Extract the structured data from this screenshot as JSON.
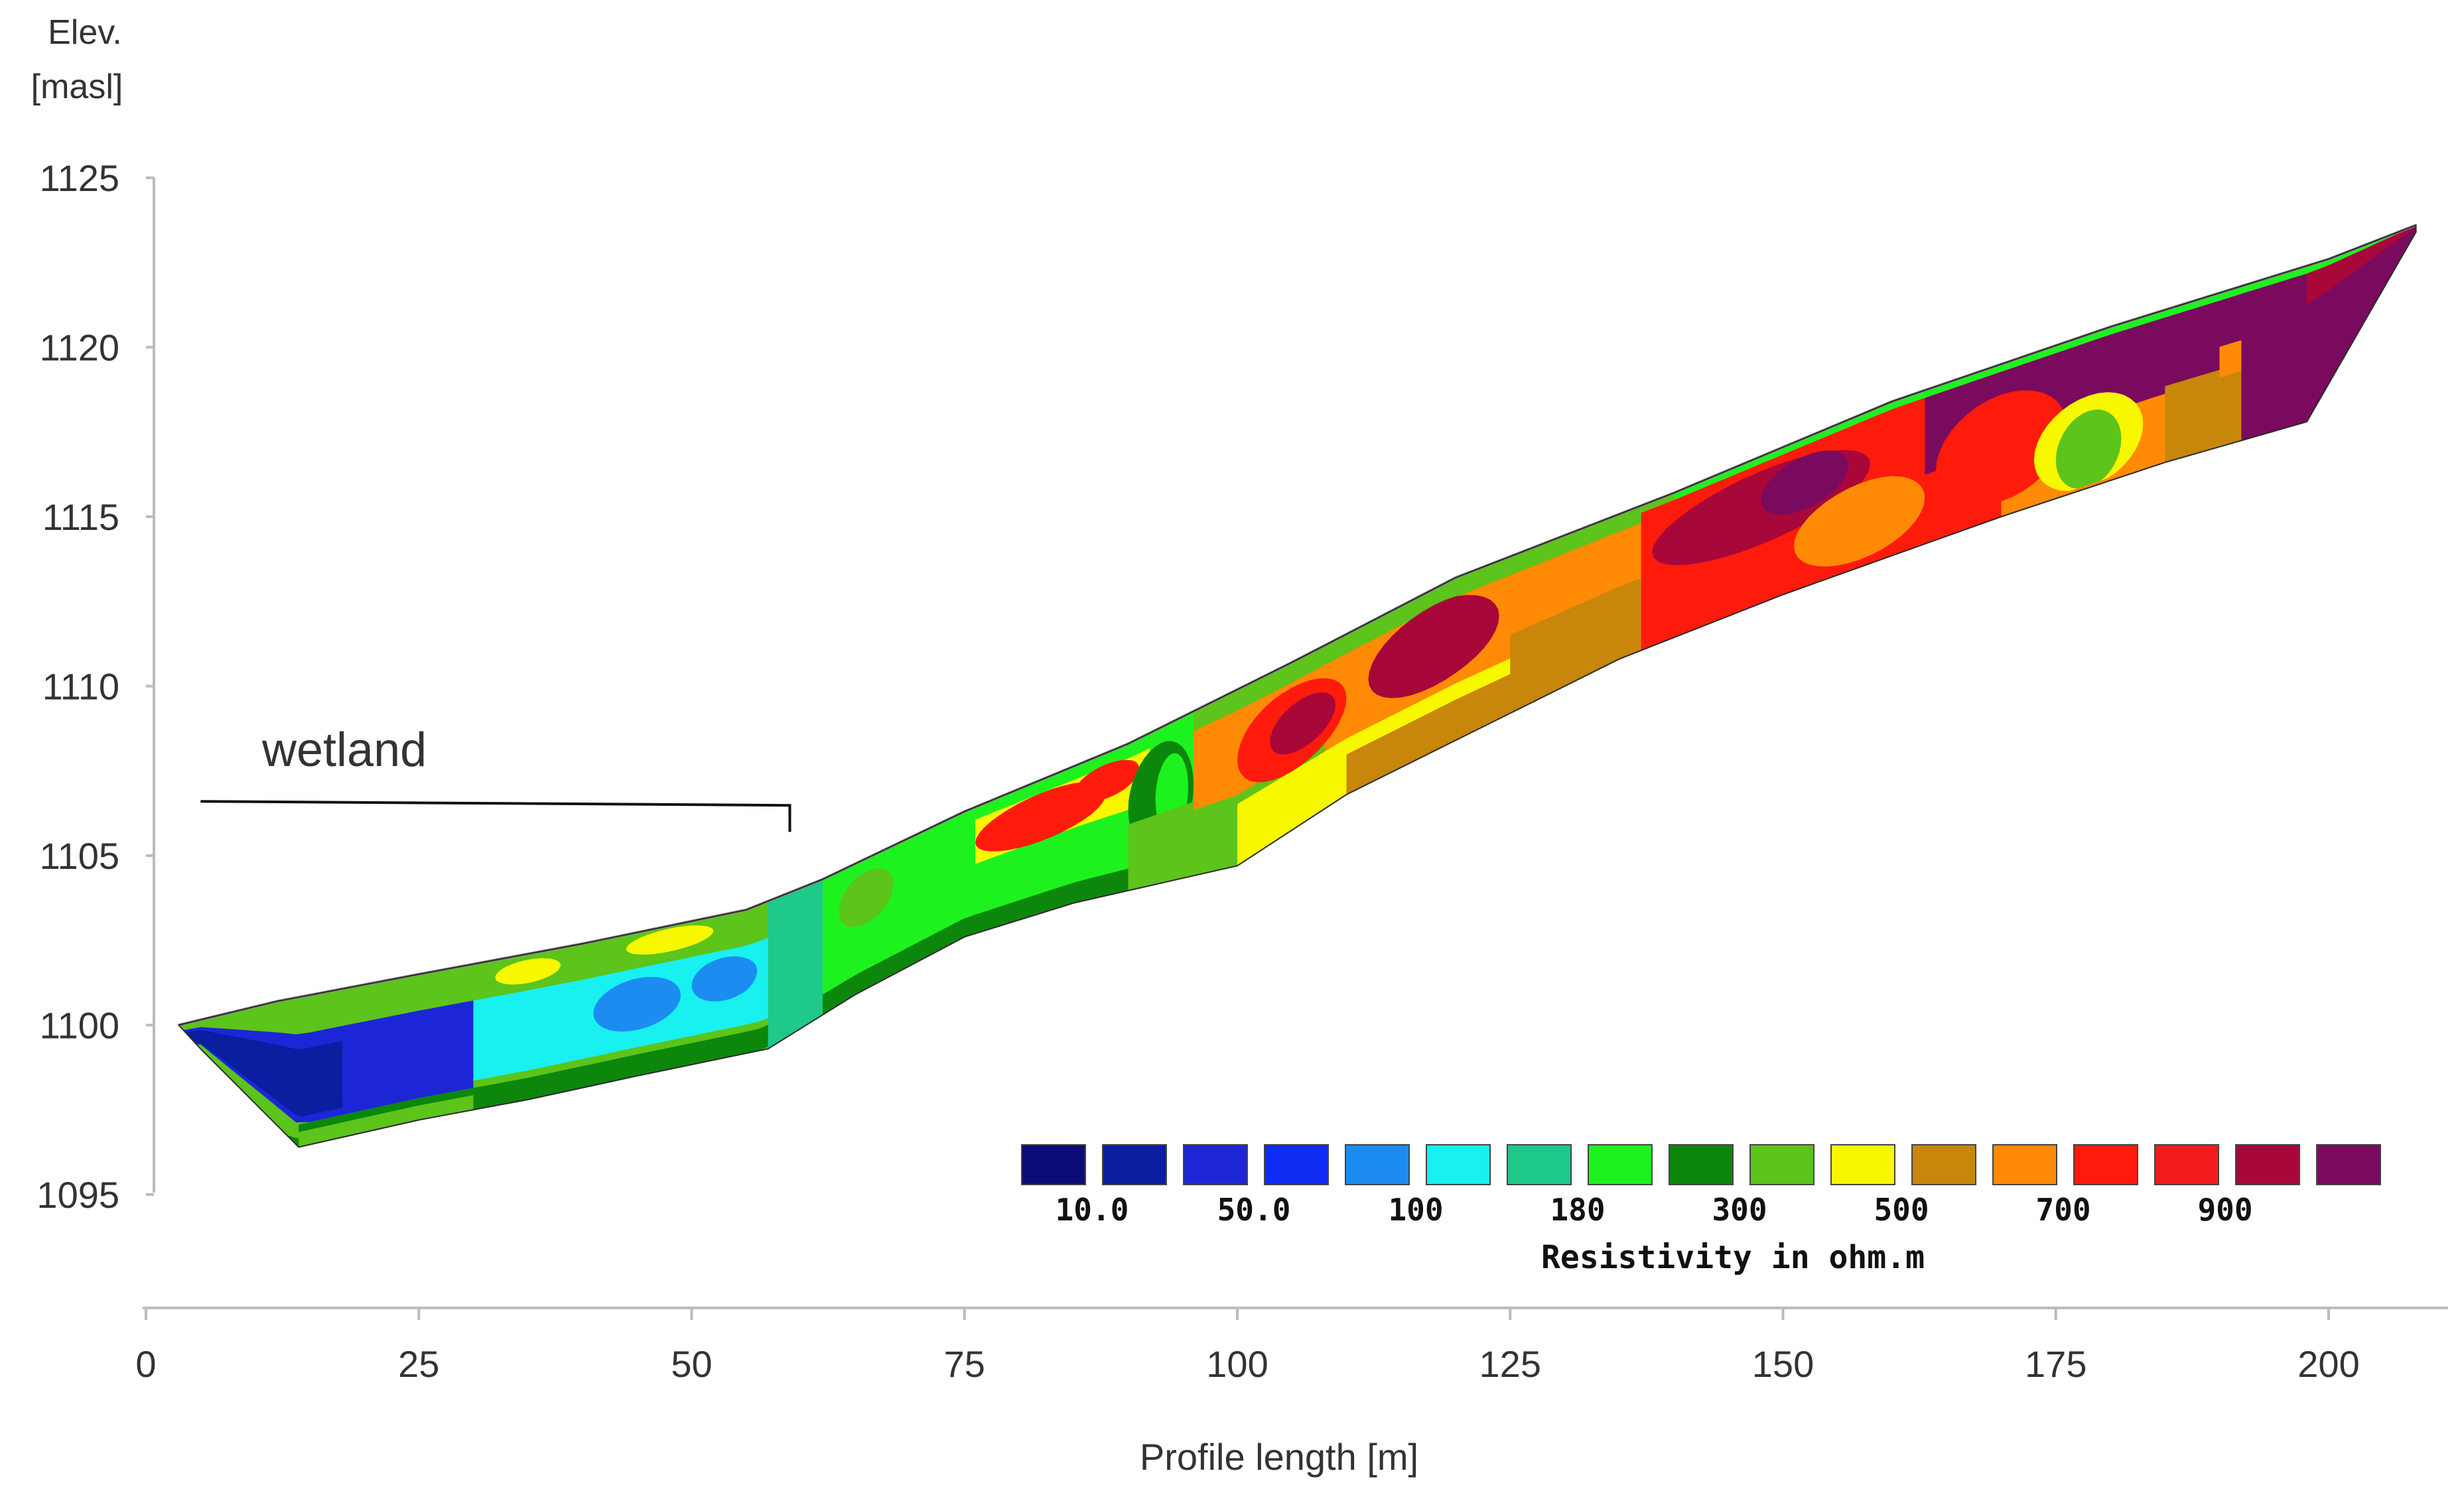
{
  "chart_data": {
    "type": "heatmap",
    "title": "",
    "xlabel": "Profile length [m]",
    "ylabel_line1": "Elev.",
    "ylabel_line2": "[masl]",
    "xlim": [
      0,
      210
    ],
    "ylim": [
      1095,
      1125
    ],
    "x_ticks": [
      0,
      25,
      50,
      75,
      100,
      125,
      150,
      175,
      200
    ],
    "y_ticks": [
      1095,
      1100,
      1105,
      1110,
      1115,
      1120,
      1125
    ],
    "surface": [
      [
        3,
        1100
      ],
      [
        12,
        1100.7
      ],
      [
        25,
        1101.5
      ],
      [
        40,
        1102.4
      ],
      [
        55,
        1103.4
      ],
      [
        62,
        1104.3
      ],
      [
        75,
        1106.3
      ],
      [
        90,
        1108.3
      ],
      [
        105,
        1110.7
      ],
      [
        120,
        1113.2
      ],
      [
        140,
        1115.7
      ],
      [
        160,
        1118.4
      ],
      [
        180,
        1120.6
      ],
      [
        200,
        1122.6
      ],
      [
        208,
        1123.6
      ]
    ],
    "bottom": [
      [
        208,
        1123.4
      ],
      [
        198,
        1117.8
      ],
      [
        185,
        1116.6
      ],
      [
        170,
        1115.0
      ],
      [
        150,
        1112.7
      ],
      [
        135,
        1110.8
      ],
      [
        125,
        1109.2
      ],
      [
        110,
        1106.8
      ],
      [
        100,
        1104.7
      ],
      [
        85,
        1103.6
      ],
      [
        75,
        1102.6
      ],
      [
        65,
        1100.9
      ],
      [
        57,
        1099.3
      ],
      [
        45,
        1098.5
      ],
      [
        35,
        1097.8
      ],
      [
        25,
        1097.2
      ],
      [
        14,
        1096.4
      ],
      [
        5,
        1099.3
      ]
    ],
    "annotation": {
      "text": "wetland",
      "x_start": 5,
      "x_end": 59,
      "y": 1106.6
    },
    "legend": {
      "title": "Resistivity in ohm.m",
      "colors": [
        "#0b0b7a",
        "#0a1ea0",
        "#1d26d6",
        "#0f2cf2",
        "#1d8cf0",
        "#19f0f0",
        "#1ec98a",
        "#1ef21e",
        "#0c870c",
        "#5cc41a",
        "#f7f700",
        "#c8860a",
        "#ff8a05",
        "#ff1b0b",
        "#f21c1c",
        "#a8073a",
        "#7a0a5e"
      ],
      "labels": [
        "10.0",
        "50.0",
        "100",
        "180",
        "300",
        "500",
        "700",
        "900"
      ]
    },
    "grid": false,
    "legend_placement": "bottom-right"
  }
}
